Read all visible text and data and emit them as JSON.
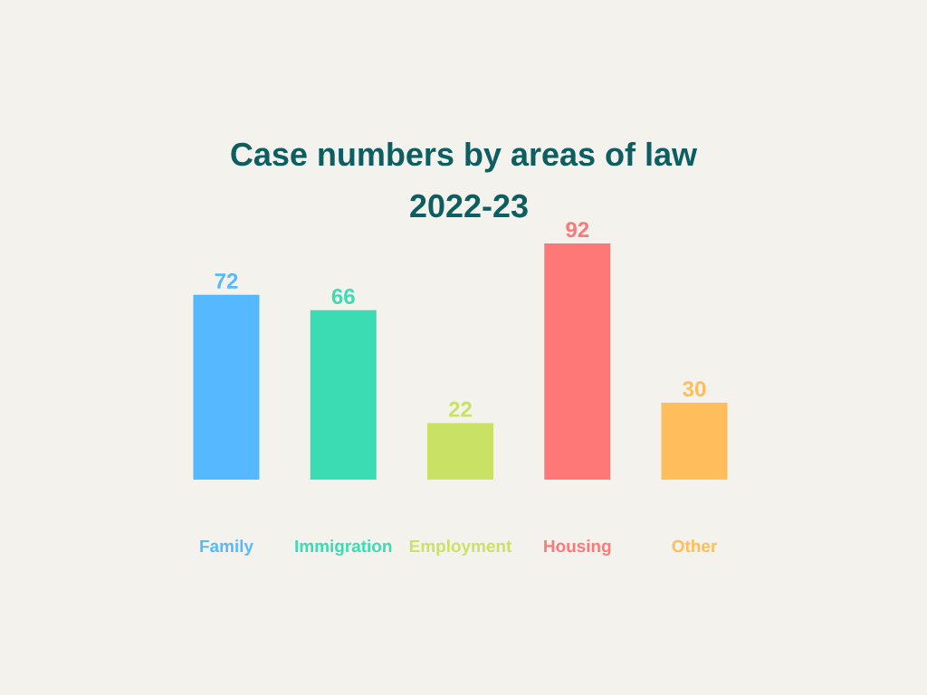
{
  "chart_data": {
    "type": "bar",
    "title": "Case numbers by areas of law",
    "subtitle": "2022-23",
    "categories": [
      "Family",
      "Immigration",
      "Employment",
      "Housing",
      "Other"
    ],
    "values": [
      72,
      66,
      22,
      92,
      30
    ],
    "colors": [
      "#56b9ff",
      "#3bdcb4",
      "#c9e266",
      "#ff7878",
      "#ffbd5c"
    ],
    "data_labels": true
  }
}
